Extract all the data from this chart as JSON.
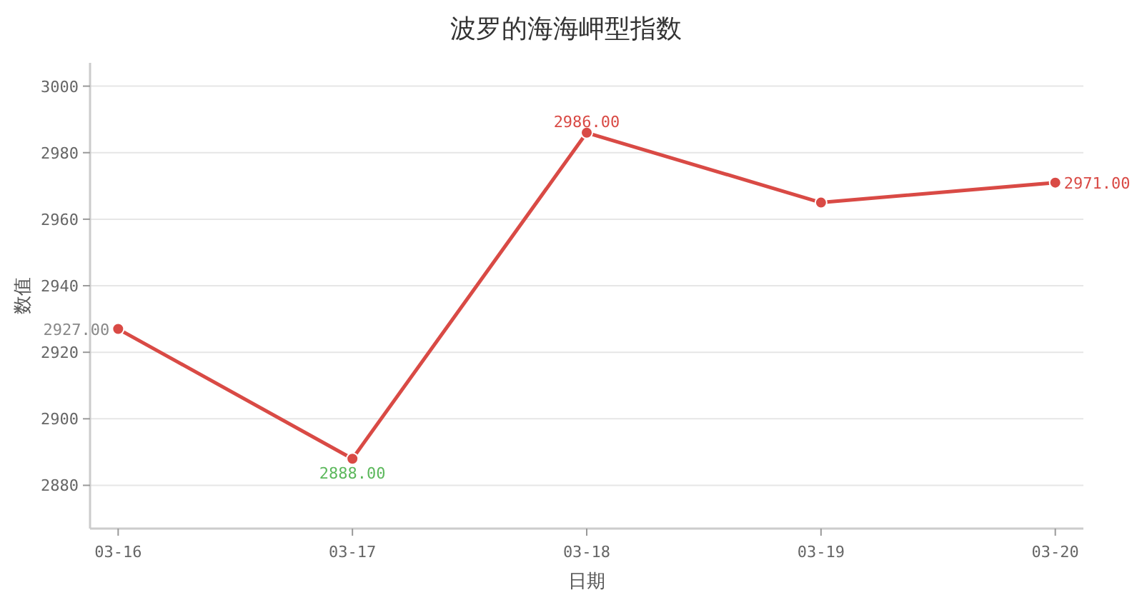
{
  "chart_data": {
    "type": "line",
    "title": "波罗的海海岬型指数",
    "xlabel": "日期",
    "ylabel": "数值",
    "categories": [
      "03-16",
      "03-17",
      "03-18",
      "03-19",
      "03-20"
    ],
    "series": [
      {
        "color": "#d94a45",
        "values": [
          2927,
          2888,
          2986,
          2965,
          2971
        ],
        "value_labels": [
          "2927.00",
          "2888.00",
          "2986.00",
          null,
          "2971.00"
        ]
      }
    ],
    "ylim": [
      2867,
      3007
    ],
    "yticks": [
      2880,
      2900,
      2920,
      2940,
      2960,
      2980,
      3000
    ],
    "grid": "y",
    "marker": "circle",
    "line_style": "solid"
  }
}
